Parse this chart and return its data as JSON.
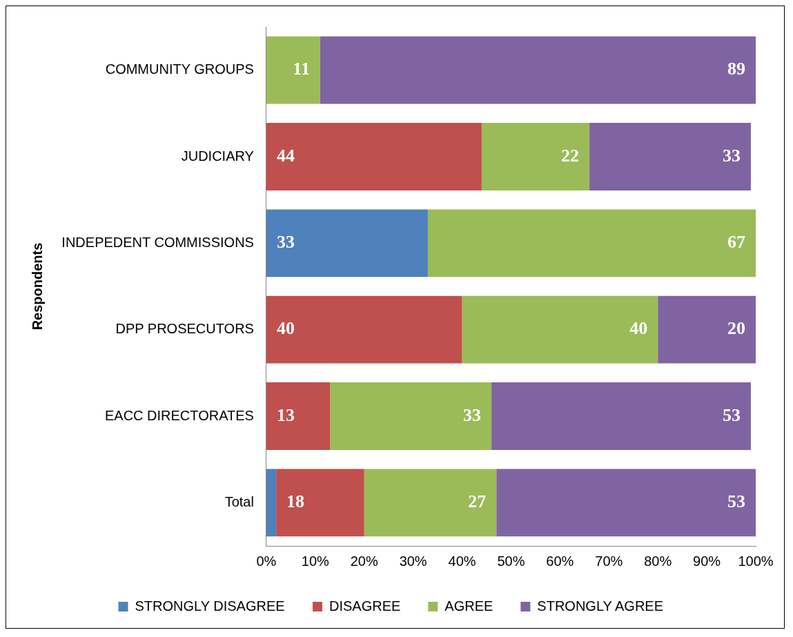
{
  "chart_data": {
    "type": "bar",
    "orientation": "horizontal",
    "stacked": true,
    "ylabel": "Respondents",
    "categories": [
      "COMMUNITY GROUPS",
      "JUDICIARY",
      "INDEPEDENT COMMISSIONS",
      "DPP PROSECUTORS",
      "EACC DIRECTORATES",
      "Total"
    ],
    "series": [
      {
        "name": "STRONGLY DISAGREE",
        "color": "#4f81bd",
        "values": [
          null,
          null,
          33,
          null,
          null,
          2
        ],
        "value_labels": [
          null,
          null,
          "33",
          null,
          null,
          null
        ]
      },
      {
        "name": "DISAGREE",
        "color": "#c0504d",
        "values": [
          null,
          44,
          null,
          40,
          13,
          18
        ],
        "value_labels": [
          null,
          "44",
          null,
          "40",
          "13",
          "18"
        ]
      },
      {
        "name": "AGREE",
        "color": "#9bbb59",
        "values": [
          11,
          22,
          67,
          40,
          33,
          27
        ],
        "value_labels": [
          "11",
          "22",
          "67",
          "40",
          "33",
          "27"
        ]
      },
      {
        "name": "STRONGLY AGREE",
        "color": "#8064a2",
        "values": [
          89,
          33,
          null,
          20,
          53,
          53
        ],
        "value_labels": [
          "89",
          "33",
          null,
          "20",
          "53",
          "53"
        ]
      }
    ],
    "xlim": [
      0,
      100
    ],
    "xticks": [
      {
        "value": 0,
        "label": "0%"
      },
      {
        "value": 10,
        "label": "10%"
      },
      {
        "value": 20,
        "label": "20%"
      },
      {
        "value": 30,
        "label": "30%"
      },
      {
        "value": 40,
        "label": "40%"
      },
      {
        "value": 50,
        "label": "50%"
      },
      {
        "value": 60,
        "label": "60%"
      },
      {
        "value": 70,
        "label": "70%"
      },
      {
        "value": 80,
        "label": "80%"
      },
      {
        "value": 90,
        "label": "90%"
      },
      {
        "value": 100,
        "label": "100%"
      }
    ],
    "grid": false,
    "legend": "bottom"
  }
}
